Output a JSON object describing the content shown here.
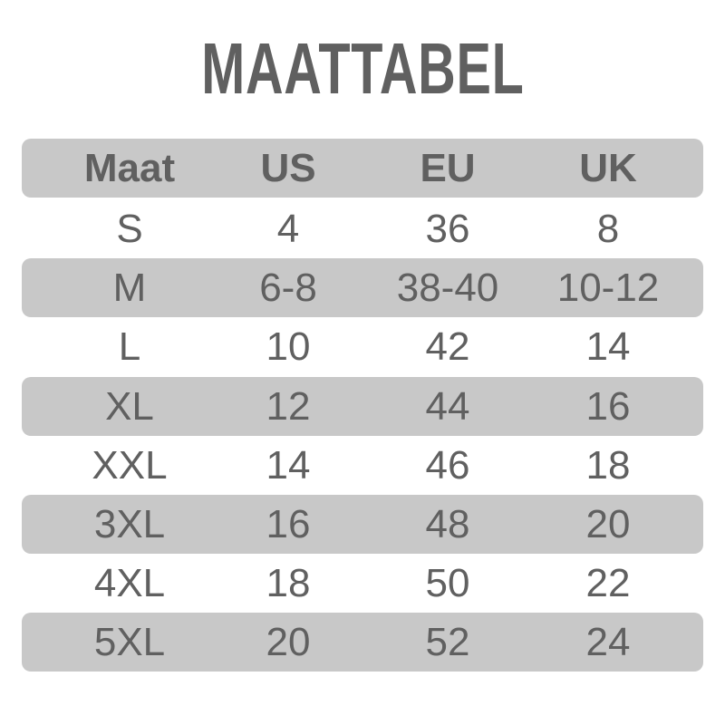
{
  "title": "MAATTABEL",
  "colors": {
    "band": "#c8c8c8",
    "text": "#606060"
  },
  "headers": [
    "Maat",
    "US",
    "EU",
    "UK"
  ],
  "rows": [
    [
      "S",
      "4",
      "36",
      "8"
    ],
    [
      "M",
      "6-8",
      "38-40",
      "10-12"
    ],
    [
      "L",
      "10",
      "42",
      "14"
    ],
    [
      "XL",
      "12",
      "44",
      "16"
    ],
    [
      "XXL",
      "14",
      "46",
      "18"
    ],
    [
      "3XL",
      "16",
      "48",
      "20"
    ],
    [
      "4XL",
      "18",
      "50",
      "22"
    ],
    [
      "5XL",
      "20",
      "52",
      "24"
    ]
  ]
}
